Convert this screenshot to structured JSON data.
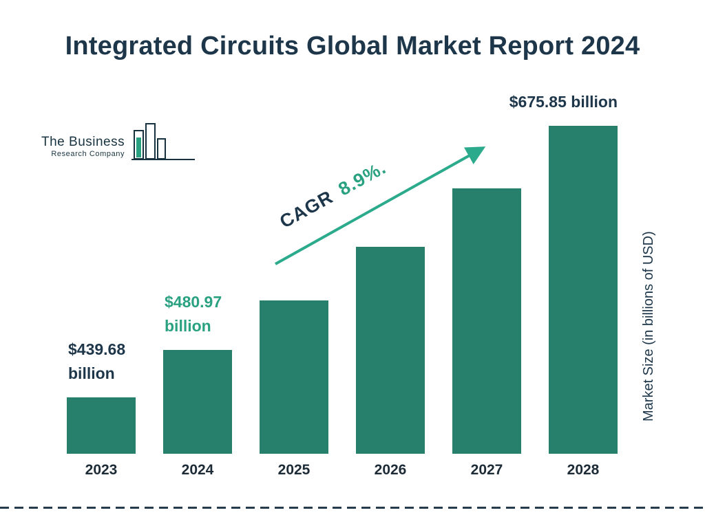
{
  "title": "Integrated Circuits Global Market Report 2024",
  "logo": {
    "line1": "The Business",
    "line2": "Research Company"
  },
  "cagr_label": {
    "prefix": "CAGR",
    "value": "8.9%."
  },
  "y_axis_label": "Market Size (in billions of USD)",
  "colors": {
    "bar": "#26806B",
    "accent_green": "#2AA181",
    "dark_text": "#1D3649",
    "arrow": "#2BAA8C"
  },
  "chart_data": {
    "type": "bar",
    "title": "Integrated Circuits Global Market Report 2024",
    "categories": [
      "2023",
      "2024",
      "2025",
      "2026",
      "2027",
      "2028"
    ],
    "values": [
      439.68,
      480.97,
      523.8,
      570.4,
      621.2,
      675.85
    ],
    "labeled_points": [
      {
        "index": 0,
        "lines": [
          "$439.68",
          "billion"
        ],
        "color": "#1D3649",
        "align": "left"
      },
      {
        "index": 1,
        "lines": [
          "$480.97",
          "billion"
        ],
        "color": "#2AA181",
        "align": "left"
      },
      {
        "index": 5,
        "lines": [
          "$675.85 billion"
        ],
        "color": "#1D3649",
        "align": "right"
      }
    ],
    "xlabel": "",
    "ylabel": "Market Size (in billions of USD)",
    "cagr_percent": 8.9,
    "ylim": [
      390,
      700
    ],
    "grid": false,
    "legend": false
  }
}
